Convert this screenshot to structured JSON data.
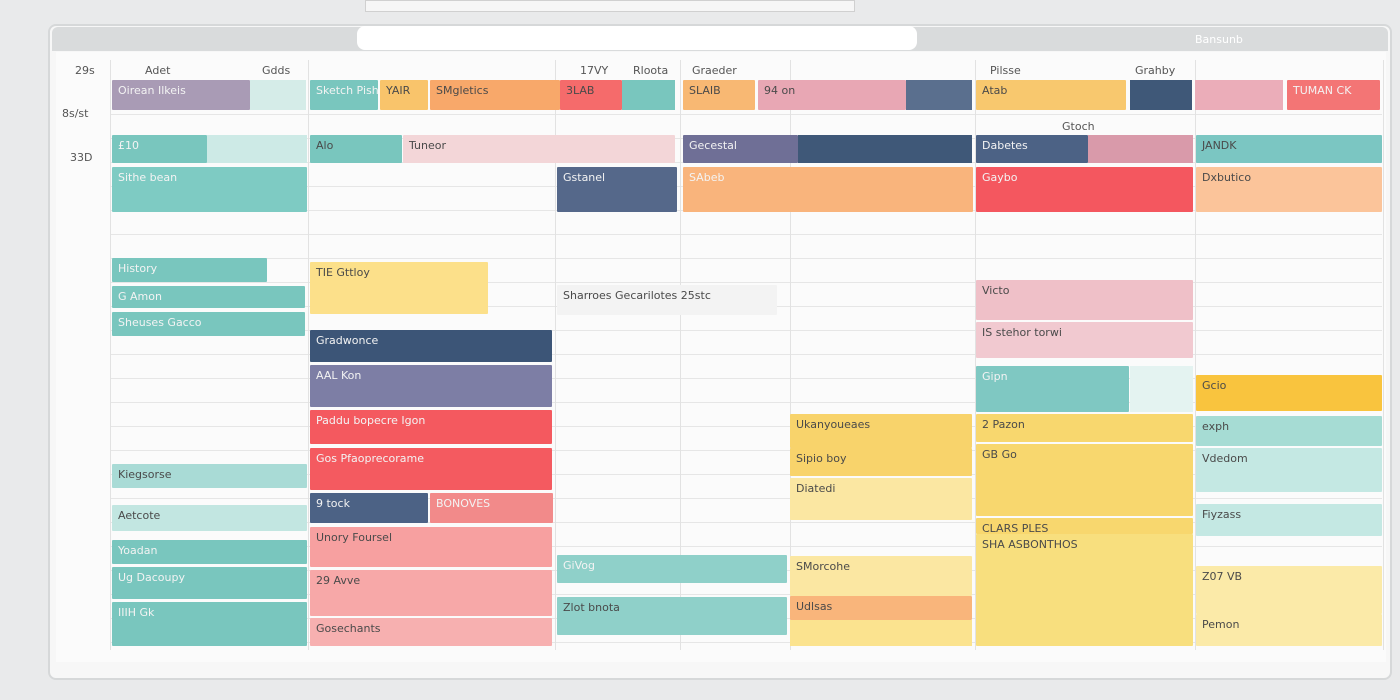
{
  "header": {
    "app": "Bansunb",
    "days": [
      "29s",
      "Adet",
      "Gdds",
      "17VY",
      "Rloota",
      "Graeder",
      "Pilsse",
      "Grahby"
    ],
    "times": [
      "8s/st",
      "33D"
    ],
    "note": "Gtoch"
  },
  "events": [
    "Oirean Ilkeis",
    "Sketch Pish",
    "YAIR",
    "SMgletics",
    "3LAB",
    "SLAIB",
    "94 on",
    "Atab",
    "TUMAN CK",
    "£10",
    "Alo",
    "Tuneor",
    "Gecestal",
    "Dabetes",
    "JANDK",
    "Sithe bean",
    "Gstanel",
    "SAbeb",
    "Gaybo",
    "Dxbutico",
    "History",
    "G Amon",
    "Sheuses Gacco",
    "TIE Gttloy",
    "Gradwonce",
    "AAL Kon",
    "Paddu bopecre Igon",
    "Gos Pfaoprecorame",
    "9 tock",
    "BONOVES",
    "Unory Foursel",
    "29 Avve",
    "Gosechants",
    "Kiegsorse",
    "Aetcote",
    "Yoadan",
    "Ug Dacoupy",
    "IIIH Gk",
    "Sharroes Gecarilotes 25stc",
    "GiVog",
    "Zlot bnota",
    "Ukanyoueaes",
    "Sipio boy",
    "Diatedi",
    "SMorcohe",
    "Udlsas",
    "Victo",
    "IS stehor torwi",
    "Gipn",
    "2 Pazon",
    "GB Go",
    "CLARS PLES",
    "SHA ASBONTHOS",
    "Gcio",
    "exph",
    "Vdedom",
    "Fiyzass",
    "Z07 VB",
    "Pemon"
  ]
}
